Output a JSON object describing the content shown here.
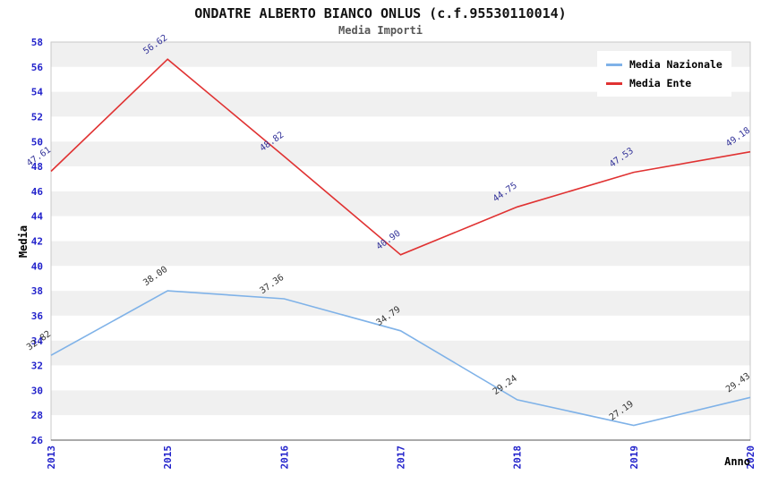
{
  "header": {
    "title": "ONDATRE ALBERTO BIANCO ONLUS (c.f.95530110014)",
    "subtitle": "Media Importi"
  },
  "chart_data": {
    "type": "line",
    "title": "ONDATRE ALBERTO BIANCO ONLUS (c.f.95530110014)",
    "subtitle": "Media Importi",
    "categories": [
      "2013",
      "2015",
      "2016",
      "2017",
      "2018",
      "2019",
      "2020"
    ],
    "series": [
      {
        "name": "Media Nazionale",
        "color": "#7fb2e8",
        "label_color": "#333333",
        "values": [
          32.82,
          38.0,
          37.36,
          34.79,
          29.24,
          27.19,
          29.43
        ]
      },
      {
        "name": "Media Ente",
        "color": "#e03232",
        "label_color": "#333399",
        "values": [
          47.61,
          56.62,
          48.82,
          40.9,
          44.75,
          47.53,
          49.18
        ]
      }
    ],
    "xlabel": "Anno",
    "ylabel": "Media",
    "ylim": [
      26,
      58
    ],
    "ytick_step": 2,
    "grid": "horizontal-bands",
    "band_colors": [
      "#f0f0f0",
      "#ffffff"
    ],
    "tick_color": "#2323cb",
    "plot_border_color": "#c9c9c9",
    "x_axis_line_color": "#555555",
    "legend_position": "top-right"
  }
}
